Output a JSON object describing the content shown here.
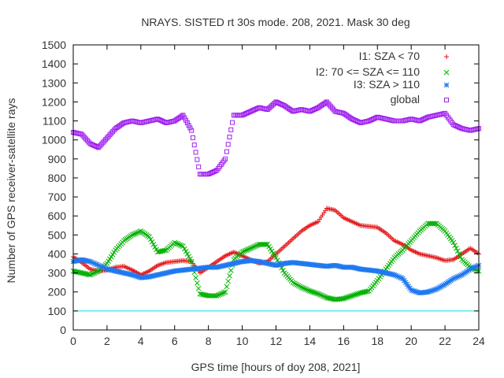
{
  "chart_data": {
    "type": "scatter",
    "title": "NRAYS. SISTED rt 30s mode. 208, 2021. Mask 30 deg",
    "xlabel": "GPS time [hours of doy 208, 2021]",
    "ylabel": "Number of GPS receiver-satellite rays",
    "xlim": [
      0,
      24
    ],
    "ylim": [
      0,
      1500
    ],
    "x_ticks": [
      "0",
      "2",
      "4",
      "6",
      "8",
      "10",
      "12",
      "14",
      "16",
      "18",
      "20",
      "22",
      "24"
    ],
    "y_ticks": [
      "0",
      "100",
      "200",
      "300",
      "400",
      "500",
      "600",
      "700",
      "800",
      "900",
      "1000",
      "1100",
      "1200",
      "1300",
      "1400",
      "1500"
    ],
    "grid": false,
    "legend_position": "top-right",
    "reference_line": {
      "y": 100,
      "color": "#00e5e5"
    },
    "series": [
      {
        "name": "I1: SZA < 70",
        "color": "#e41a1c",
        "marker": "plus",
        "x": [
          0,
          0.5,
          1,
          1.5,
          2,
          2.5,
          3,
          3.5,
          4,
          4.5,
          5,
          5.5,
          6,
          6.5,
          7,
          7.5,
          8,
          8.5,
          9,
          9.5,
          10,
          10.5,
          11,
          11.5,
          12,
          12.5,
          13,
          13.5,
          14,
          14.5,
          15,
          15.5,
          16,
          16.5,
          17,
          17.5,
          18,
          18.5,
          19,
          19.5,
          20,
          20.5,
          21,
          21.5,
          22,
          22.5,
          23,
          23.5,
          24
        ],
        "y": [
          385,
          355,
          320,
          310,
          315,
          330,
          335,
          315,
          290,
          310,
          340,
          355,
          360,
          365,
          360,
          300,
          330,
          360,
          390,
          410,
          390,
          370,
          350,
          360,
          400,
          440,
          480,
          520,
          550,
          570,
          640,
          630,
          590,
          570,
          550,
          545,
          540,
          510,
          470,
          450,
          420,
          400,
          390,
          380,
          365,
          370,
          400,
          430,
          400
        ]
      },
      {
        "name": "I2: 70 <= SZA <= 110",
        "color": "#00b000",
        "marker": "cross",
        "x": [
          0,
          0.5,
          1,
          1.5,
          2,
          2.5,
          3,
          3.5,
          4,
          4.5,
          5,
          5.5,
          6,
          6.5,
          7,
          7.5,
          8,
          8.5,
          9,
          9.5,
          10,
          10.5,
          11,
          11.5,
          12,
          12.5,
          13,
          13.5,
          14,
          14.5,
          15,
          15.5,
          16,
          16.5,
          17,
          17.5,
          18,
          18.5,
          19,
          19.5,
          20,
          20.5,
          21,
          21.5,
          22,
          22.5,
          23,
          23.5,
          24
        ],
        "y": [
          310,
          300,
          290,
          310,
          350,
          420,
          470,
          500,
          520,
          490,
          410,
          420,
          460,
          440,
          360,
          190,
          180,
          180,
          200,
          370,
          410,
          430,
          450,
          450,
          380,
          300,
          250,
          225,
          205,
          190,
          170,
          160,
          165,
          180,
          195,
          205,
          260,
          320,
          380,
          420,
          470,
          520,
          560,
          560,
          520,
          460,
          370,
          330,
          310
        ]
      },
      {
        "name": "I3: SZA > 110",
        "color": "#1e78f0",
        "marker": "star",
        "x": [
          0,
          0.5,
          1,
          1.5,
          2,
          2.5,
          3,
          3.5,
          4,
          4.5,
          5,
          5.5,
          6,
          6.5,
          7,
          7.5,
          8,
          8.5,
          9,
          9.5,
          10,
          10.5,
          11,
          11.5,
          12,
          12.5,
          13,
          13.5,
          14,
          14.5,
          15,
          15.5,
          16,
          16.5,
          17,
          17.5,
          18,
          18.5,
          19,
          19.5,
          20,
          20.5,
          21,
          21.5,
          22,
          22.5,
          23,
          23.5,
          24
        ],
        "y": [
          360,
          370,
          360,
          340,
          320,
          310,
          300,
          290,
          275,
          280,
          290,
          300,
          310,
          315,
          320,
          325,
          330,
          330,
          340,
          350,
          360,
          365,
          360,
          350,
          340,
          350,
          355,
          350,
          345,
          340,
          335,
          340,
          330,
          330,
          320,
          315,
          310,
          300,
          290,
          270,
          210,
          195,
          200,
          215,
          240,
          270,
          290,
          320,
          340
        ]
      },
      {
        "name": "global",
        "color": "#a020f0",
        "marker": "square",
        "x": [
          0,
          0.5,
          1,
          1.5,
          2,
          2.5,
          3,
          3.5,
          4,
          4.5,
          5,
          5.5,
          6,
          6.5,
          7,
          7.5,
          8,
          8.5,
          9,
          9.5,
          10,
          10.5,
          11,
          11.5,
          12,
          12.5,
          13,
          13.5,
          14,
          14.5,
          15,
          15.5,
          16,
          16.5,
          17,
          17.5,
          18,
          18.5,
          19,
          19.5,
          20,
          20.5,
          21,
          21.5,
          22,
          22.5,
          23,
          23.5,
          24
        ],
        "y": [
          1040,
          1030,
          980,
          960,
          1010,
          1060,
          1090,
          1100,
          1090,
          1100,
          1110,
          1090,
          1100,
          1130,
          1050,
          820,
          820,
          840,
          900,
          1130,
          1130,
          1150,
          1170,
          1160,
          1200,
          1180,
          1150,
          1160,
          1150,
          1170,
          1200,
          1150,
          1140,
          1110,
          1090,
          1100,
          1120,
          1110,
          1100,
          1100,
          1110,
          1100,
          1120,
          1130,
          1140,
          1080,
          1060,
          1050,
          1060
        ]
      }
    ]
  }
}
